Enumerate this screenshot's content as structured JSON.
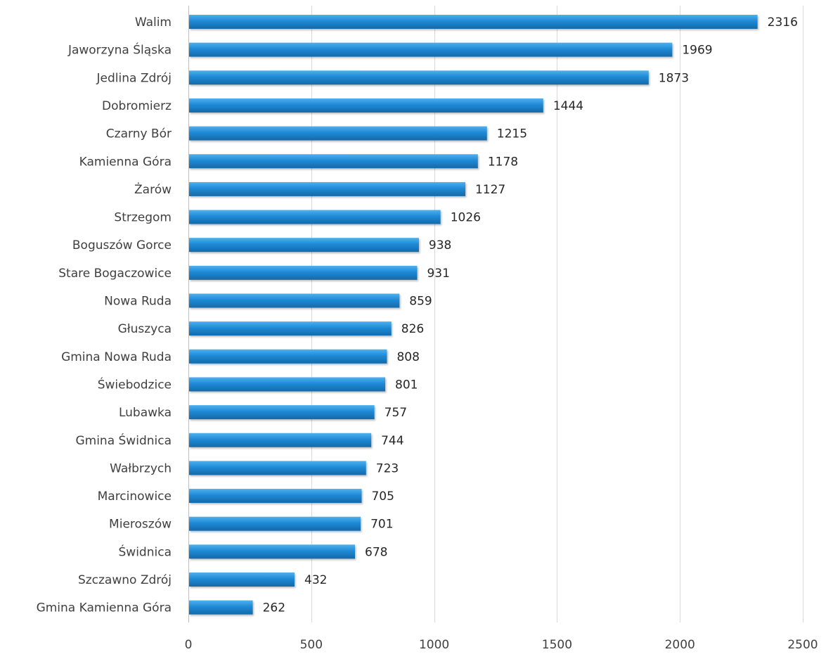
{
  "chart_data": {
    "type": "bar",
    "orientation": "horizontal",
    "title": "",
    "xlabel": "",
    "ylabel": "",
    "categories": [
      "Walim",
      "Jaworzyna Śląska",
      "Jedlina Zdrój",
      "Dobromierz",
      "Czarny Bór",
      "Kamienna Góra",
      "Żarów",
      "Strzegom",
      "Boguszów Gorce",
      "Stare Bogaczowice",
      "Nowa Ruda",
      "Głuszyca",
      "Gmina Nowa Ruda",
      "Świebodzice",
      "Lubawka",
      "Gmina Świdnica",
      "Wałbrzych",
      "Marcinowice",
      "Mieroszów",
      "Świdnica",
      "Szczawno Zdrój",
      "Gmina Kamienna Góra"
    ],
    "values": [
      2316,
      1969,
      1873,
      1444,
      1215,
      1178,
      1127,
      1026,
      938,
      931,
      859,
      826,
      808,
      801,
      757,
      744,
      723,
      705,
      701,
      678,
      432,
      262
    ],
    "data_labels": [
      "2316",
      "1969",
      "1873",
      "1444",
      "1215",
      "1178",
      "1127",
      "1026",
      "938",
      "931",
      "859",
      "826",
      "808",
      "801",
      "757",
      "744",
      "723",
      "705",
      "701",
      "678",
      "432",
      "262"
    ],
    "xlim": [
      0,
      2500
    ],
    "x_ticks": [
      0,
      500,
      1000,
      1500,
      2000,
      2500
    ],
    "x_tick_labels": [
      "0",
      "500",
      "1000",
      "1500",
      "2000",
      "2500"
    ],
    "grid": "vertical",
    "legend": "none",
    "bar_color": "#1f8ad6",
    "bar_highlight": "#4fb0ee",
    "bar_shadow": "#1469a8"
  }
}
